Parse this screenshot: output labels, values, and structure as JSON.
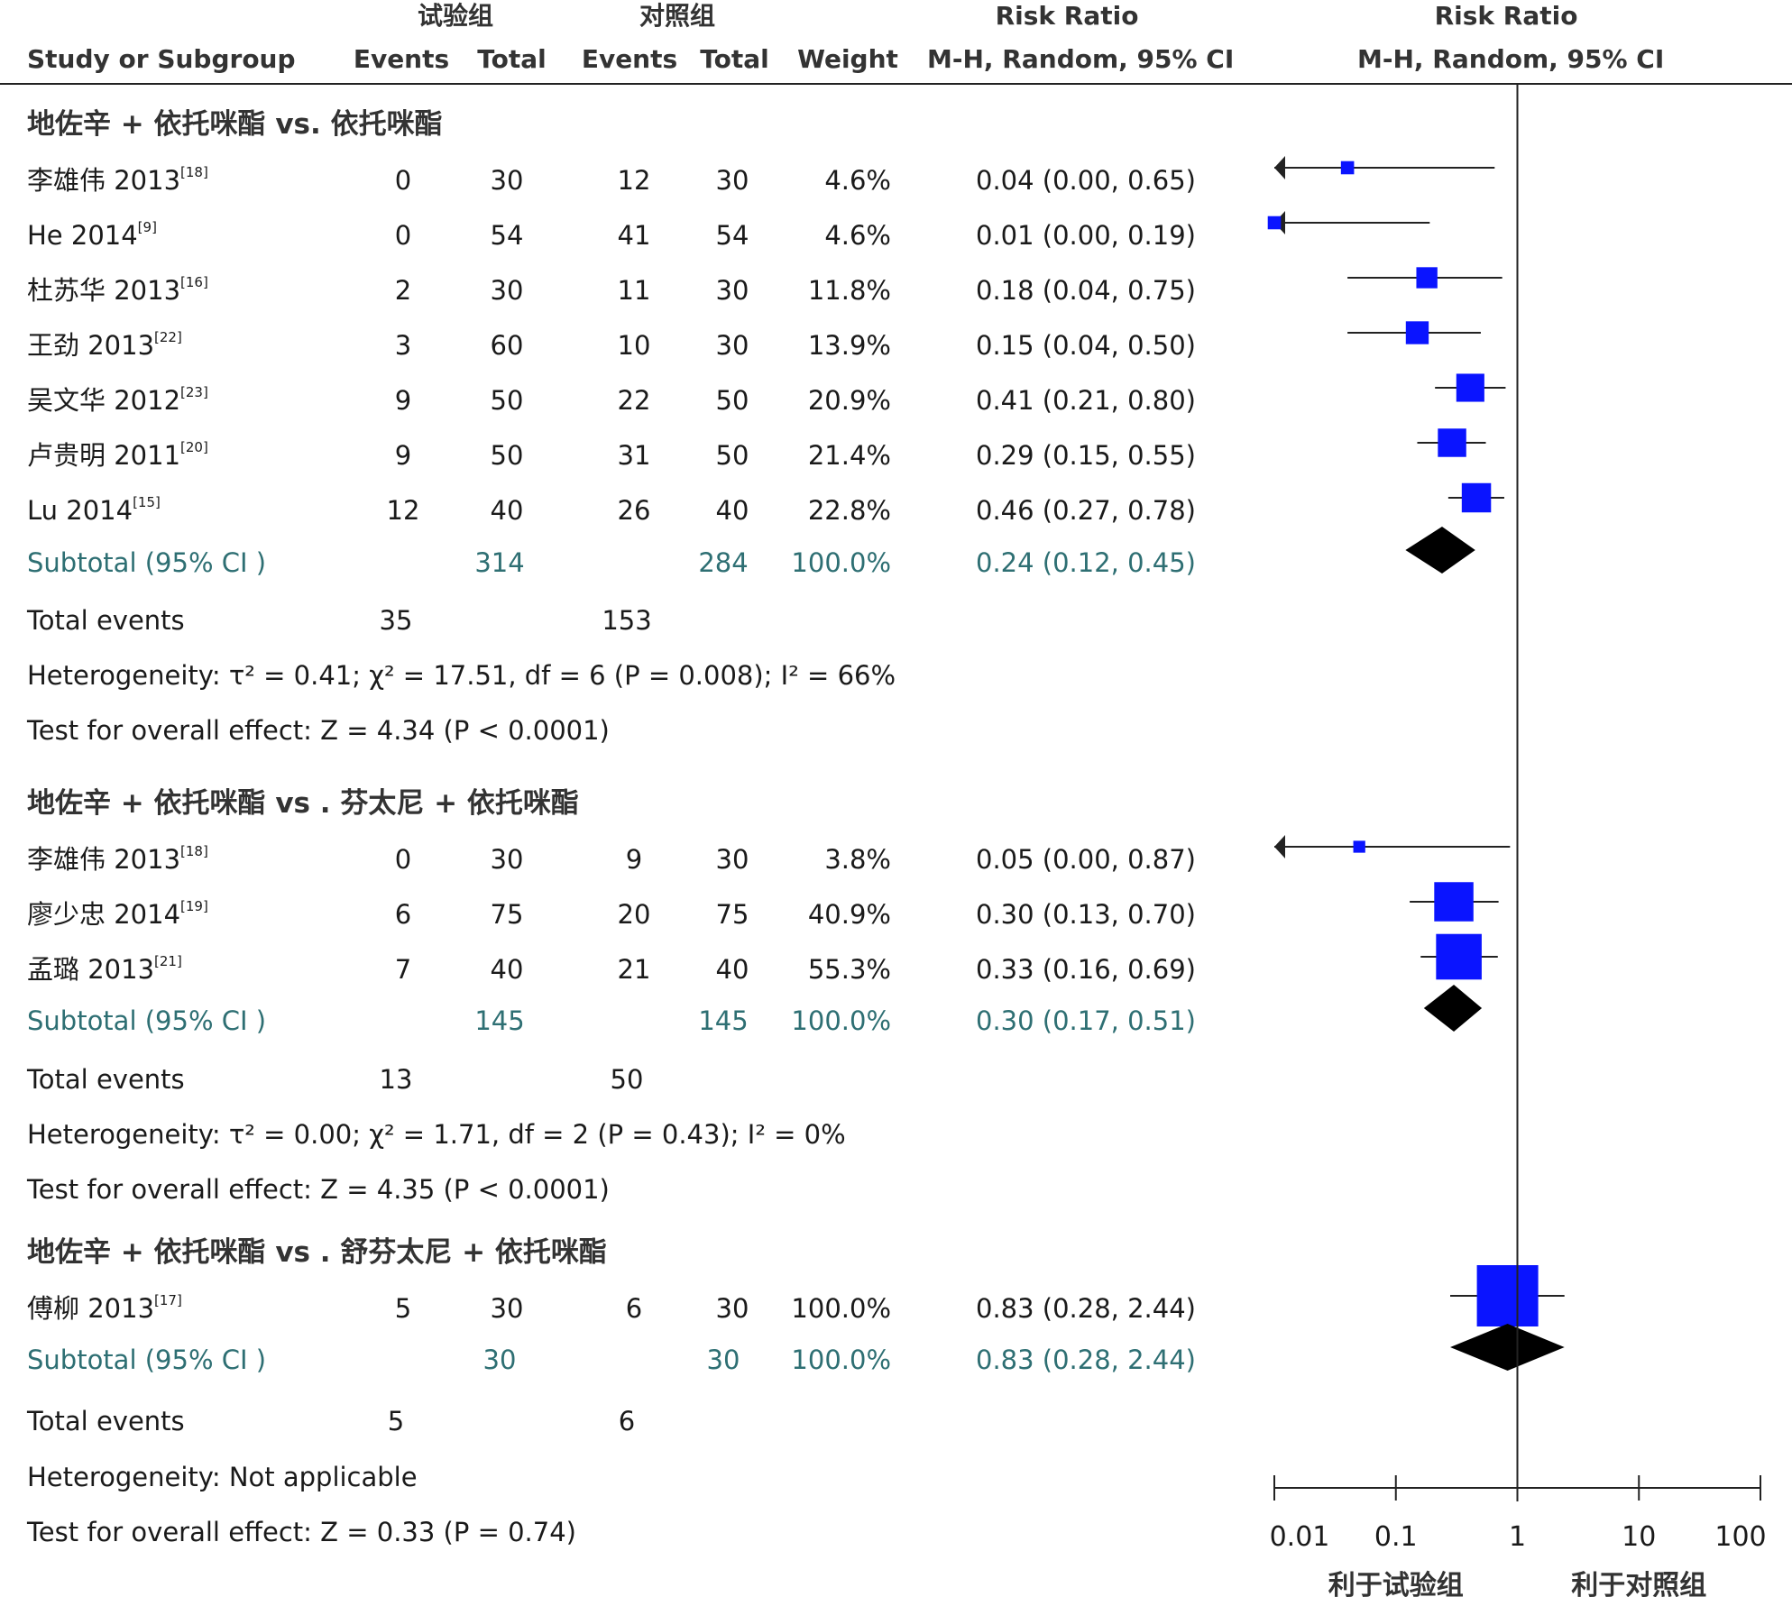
{
  "header": {
    "exp_group": "试验组",
    "ctrl_group": "对照组",
    "study_col": "Study or Subgroup",
    "events": "Events",
    "total": "Total",
    "weight": "Weight",
    "rr_title": "Risk Ratio",
    "rr_method": "M-H, Random, 95% CI",
    "plot_title": "Risk Ratio",
    "plot_method": "M-H, Random, 95% CI"
  },
  "chart_data": {
    "type": "forest",
    "scale": "log",
    "xlim": [
      0.01,
      100
    ],
    "x_ticks": [
      "0.01",
      "0.1",
      "1",
      "10",
      "100"
    ],
    "reference_line": 1,
    "favours_left": "利于试验组",
    "favours_right": "利于对照组",
    "groups": [
      {
        "title": "地佐辛 + 依托咪酯 vs.  依托咪酯",
        "studies": [
          {
            "name": "李雄伟 2013",
            "ref": "[18]",
            "exp_events": "0",
            "exp_total": "30",
            "ctrl_events": "12",
            "ctrl_total": "30",
            "weight": "4.6%",
            "ci_text": "0.04 (0.00, 0.65)",
            "rr": 0.04,
            "lo": 0.002,
            "hi": 0.65,
            "w": 4.6,
            "arrow_left": true
          },
          {
            "name": "He 2014",
            "ref": "[9]",
            "exp_events": "0",
            "exp_total": "54",
            "ctrl_events": "41",
            "ctrl_total": "54",
            "weight": "4.6%",
            "ci_text": "0.01 (0.00, 0.19)",
            "rr": 0.01,
            "lo": 0.0005,
            "hi": 0.19,
            "w": 4.6,
            "arrow_left": true
          },
          {
            "name": "杜苏华 2013",
            "ref": "[16]",
            "exp_events": "2",
            "exp_total": "30",
            "ctrl_events": "11",
            "ctrl_total": "30",
            "weight": "11.8%",
            "ci_text": "0.18 (0.04, 0.75)",
            "rr": 0.18,
            "lo": 0.04,
            "hi": 0.75,
            "w": 11.8
          },
          {
            "name": "王劲 2013",
            "ref": "[22]",
            "exp_events": "3",
            "exp_total": "60",
            "ctrl_events": "10",
            "ctrl_total": "30",
            "weight": "13.9%",
            "ci_text": "0.15 (0.04, 0.50)",
            "rr": 0.15,
            "lo": 0.04,
            "hi": 0.5,
            "w": 13.9
          },
          {
            "name": "吴文华 2012",
            "ref": "[23]",
            "exp_events": "9",
            "exp_total": "50",
            "ctrl_events": "22",
            "ctrl_total": "50",
            "weight": "20.9%",
            "ci_text": "0.41 (0.21, 0.80)",
            "rr": 0.41,
            "lo": 0.21,
            "hi": 0.8,
            "w": 20.9
          },
          {
            "name": "卢贵明 2011",
            "ref": "[20]",
            "exp_events": "9",
            "exp_total": "50",
            "ctrl_events": "31",
            "ctrl_total": "50",
            "weight": "21.4%",
            "ci_text": "0.29 (0.15, 0.55)",
            "rr": 0.29,
            "lo": 0.15,
            "hi": 0.55,
            "w": 21.4
          },
          {
            "name": "Lu 2014",
            "ref": "[15]",
            "exp_events": "12",
            "exp_total": "40",
            "ctrl_events": "26",
            "ctrl_total": "40",
            "weight": "22.8%",
            "ci_text": "0.46 (0.27, 0.78)",
            "rr": 0.46,
            "lo": 0.27,
            "hi": 0.78,
            "w": 22.8
          }
        ],
        "subtotal": {
          "label": "Subtotal (95% CI )",
          "exp_total": "314",
          "ctrl_total": "284",
          "weight": "100.0%",
          "ci_text": "0.24 (0.12, 0.45)",
          "rr": 0.24,
          "lo": 0.12,
          "hi": 0.45
        },
        "total_events": {
          "label": "Total events",
          "exp": "35",
          "ctrl": "153"
        },
        "heterogeneity": "Heterogeneity: τ² = 0.41;  χ² = 17.51, df = 6 (P = 0.008); I² = 66%",
        "overall": "Test for overall effect: Z = 4.34 (P < 0.0001)"
      },
      {
        "title": "地佐辛 + 依托咪酯 vs . 芬太尼 + 依托咪酯",
        "studies": [
          {
            "name": "李雄伟 2013",
            "ref": "[18]",
            "exp_events": "0",
            "exp_total": "30",
            "ctrl_events": "9",
            "ctrl_total": "30",
            "weight": "3.8%",
            "ci_text": "0.05 (0.00, 0.87)",
            "rr": 0.05,
            "lo": 0.003,
            "hi": 0.87,
            "w": 3.8,
            "arrow_left": true
          },
          {
            "name": "廖少忠 2014",
            "ref": "[19]",
            "exp_events": "6",
            "exp_total": "75",
            "ctrl_events": "20",
            "ctrl_total": "75",
            "weight": "40.9%",
            "ci_text": "0.30 (0.13, 0.70)",
            "rr": 0.3,
            "lo": 0.13,
            "hi": 0.7,
            "w": 40.9
          },
          {
            "name": "孟璐 2013",
            "ref": "[21]",
            "exp_events": "7",
            "exp_total": "40",
            "ctrl_events": "21",
            "ctrl_total": "40",
            "weight": "55.3%",
            "ci_text": "0.33 (0.16, 0.69)",
            "rr": 0.33,
            "lo": 0.16,
            "hi": 0.69,
            "w": 55.3
          }
        ],
        "subtotal": {
          "label": "Subtotal (95% CI )",
          "exp_total": "145",
          "ctrl_total": "145",
          "weight": "100.0%",
          "ci_text": "0.30 (0.17, 0.51)",
          "rr": 0.3,
          "lo": 0.17,
          "hi": 0.51
        },
        "total_events": {
          "label": "Total events",
          "exp": "13",
          "ctrl": "50"
        },
        "heterogeneity": "Heterogeneity: τ² = 0.00;  χ² = 1.71, df = 2 (P = 0.43); I² = 0%",
        "overall": "Test for overall effect: Z = 4.35 (P < 0.0001)"
      },
      {
        "title": "地佐辛 + 依托咪酯 vs . 舒芬太尼 + 依托咪酯",
        "studies": [
          {
            "name": "傅柳 2013",
            "ref": "[17]",
            "exp_events": "5",
            "exp_total": "30",
            "ctrl_events": "6",
            "ctrl_total": "30",
            "weight": "100.0%",
            "ci_text": "0.83 (0.28, 2.44)",
            "rr": 0.83,
            "lo": 0.28,
            "hi": 2.44,
            "w": 100.0
          }
        ],
        "subtotal": {
          "label": "Subtotal (95% CI )",
          "exp_total": "30",
          "ctrl_total": "30",
          "weight": "100.0%",
          "ci_text": "0.83 (0.28, 2.44)",
          "rr": 0.83,
          "lo": 0.28,
          "hi": 2.44
        },
        "total_events": {
          "label": "Total events",
          "exp": "5",
          "ctrl": "6"
        },
        "heterogeneity": "Heterogeneity: Not applicable",
        "overall": "Test for overall effect: Z = 0.33 (P = 0.74)"
      }
    ]
  }
}
